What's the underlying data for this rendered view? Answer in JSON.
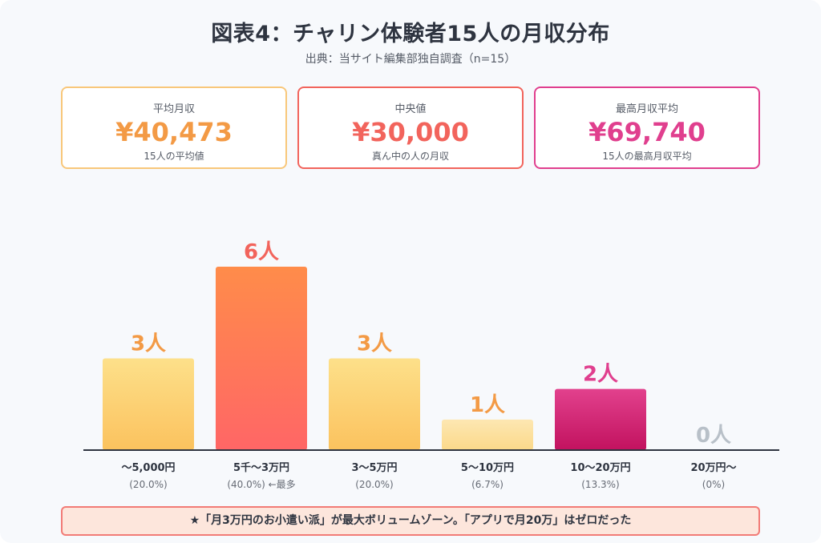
{
  "title": "図表4：チャリン体験者15人の月収分布",
  "subtitle": "出典：当サイト編集部独自調査（n=15）",
  "cards": [
    {
      "label": "平均月収",
      "value": "¥40,473",
      "note": "15人の平均値",
      "color": "#f39a45",
      "border": "#f8c77a"
    },
    {
      "label": "中央値",
      "value": "¥30,000",
      "note": "真ん中の人の月収",
      "color": "#f2645c",
      "border": "#f2645c"
    },
    {
      "label": "最高月収平均",
      "value": "¥69,740",
      "note": "15人の最高月収平均",
      "color": "#e03f8e",
      "border": "#e03f8e"
    }
  ],
  "chart_data": {
    "type": "bar",
    "unit": "人",
    "categories": [
      "～5,000円",
      "5千～3万円",
      "3～5万円",
      "5～10万円",
      "10～20万円",
      "20万円～"
    ],
    "values": [
      3,
      6,
      3,
      1,
      2,
      0
    ],
    "value_labels": [
      "3人",
      "6人",
      "3人",
      "1人",
      "2人",
      "0人"
    ],
    "percent_labels": [
      "(20.0%)",
      "(40.0%) ←最多",
      "(20.0%)",
      "(6.7%)",
      "(13.3%)",
      "(0%)"
    ],
    "ylim": [
      0,
      6
    ],
    "colors": {
      "bar_warm_top": "#fde08a",
      "bar_warm_bottom": "#fbc25e",
      "bar_peak_top": "#ff8c4a",
      "bar_peak_bottom": "#ff6666",
      "bar_light_top": "#fde7b2",
      "bar_light_bottom": "#fbd98a",
      "bar_pink_top": "#e2418d",
      "bar_pink_bottom": "#c2125f",
      "label_orange": "#f39a45",
      "label_red": "#f2645c",
      "label_pink": "#e03f8e",
      "label_gray": "#b8c0c8",
      "baseline": "#2e3440"
    }
  },
  "note": "★「月3万円のお小遣い派」が最大ボリュームゾーン。「アプリで月20万」はゼロだった"
}
